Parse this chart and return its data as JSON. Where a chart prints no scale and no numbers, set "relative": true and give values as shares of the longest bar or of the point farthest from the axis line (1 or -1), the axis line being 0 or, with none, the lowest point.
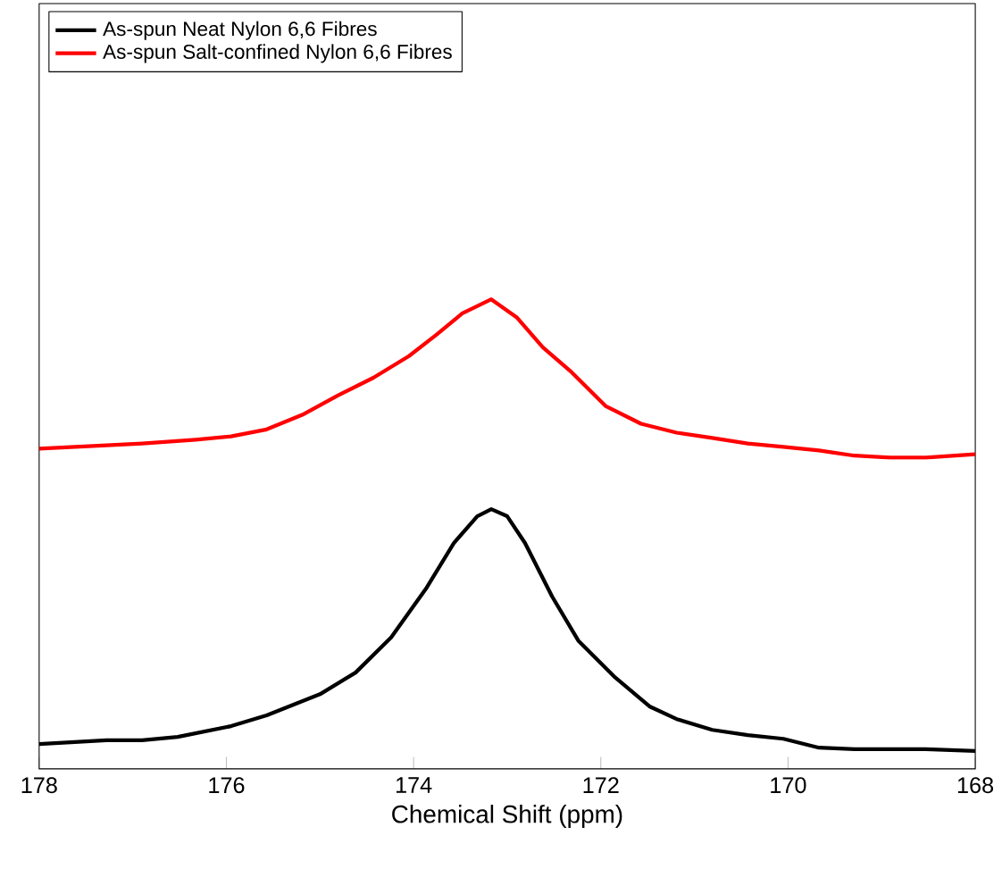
{
  "chart_data": {
    "type": "line",
    "relative": true,
    "xlabel": "Chemical Shift (ppm)",
    "xlim": [
      178,
      168
    ],
    "xticks": [
      178,
      176,
      174,
      172,
      170,
      168
    ],
    "legend": "top left",
    "marker": "none",
    "line_style": "solid",
    "grid": false,
    "series": [
      {
        "name": "As-spun Neat Nylon 6,6 Fibres",
        "color": "#000000",
        "x": [
          178,
          177.28,
          176.9,
          176.52,
          175.95,
          175.57,
          175.0,
          174.62,
          174.24,
          173.86,
          173.57,
          173.32,
          173.17,
          173.0,
          172.81,
          172.52,
          172.24,
          171.86,
          171.48,
          171.19,
          170.81,
          170.43,
          170.05,
          169.67,
          169.29,
          168.91,
          168.53,
          168.0
        ],
        "values": [
          0.053,
          0.061,
          0.061,
          0.068,
          0.091,
          0.114,
          0.159,
          0.205,
          0.28,
          0.386,
          0.481,
          0.538,
          0.553,
          0.538,
          0.481,
          0.367,
          0.273,
          0.197,
          0.133,
          0.106,
          0.083,
          0.072,
          0.064,
          0.045,
          0.042,
          0.042,
          0.042,
          0.038
        ]
      },
      {
        "name": "As-spun Salt-confined Nylon 6,6 Fibres",
        "color": "#ff0000",
        "x": [
          178,
          177.28,
          176.9,
          176.33,
          175.95,
          175.57,
          175.19,
          174.81,
          174.43,
          174.05,
          173.76,
          173.48,
          173.17,
          172.9,
          172.62,
          172.33,
          171.95,
          171.57,
          171.19,
          170.81,
          170.43,
          170.05,
          169.67,
          169.29,
          168.91,
          168.53,
          168.0
        ],
        "values": [
          0.682,
          0.689,
          0.693,
          0.701,
          0.708,
          0.723,
          0.754,
          0.795,
          0.833,
          0.879,
          0.924,
          0.97,
          1,
          0.962,
          0.898,
          0.848,
          0.773,
          0.735,
          0.716,
          0.705,
          0.693,
          0.686,
          0.678,
          0.667,
          0.663,
          0.663,
          0.67
        ]
      }
    ]
  }
}
